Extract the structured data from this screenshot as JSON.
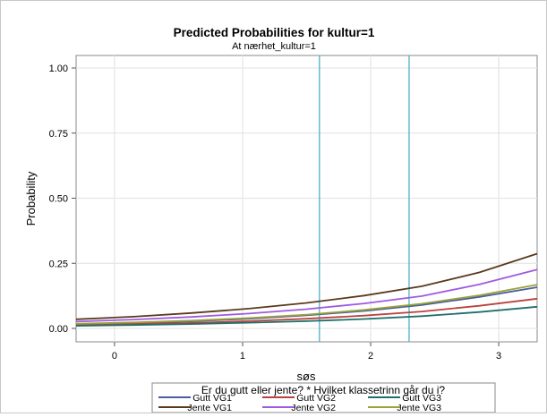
{
  "chart_data": {
    "type": "line",
    "title": "Predicted Probabilities for kultur=1",
    "subtitle": "At nærhet_kultur=1",
    "xlabel": "søs",
    "ylabel": "Probability",
    "xlim": [
      -0.3,
      3.3
    ],
    "ylim": [
      0,
      1
    ],
    "xticks": [
      0,
      1,
      2,
      3
    ],
    "yticks": [
      "0.00",
      "0.25",
      "0.50",
      "0.75",
      "1.00"
    ],
    "grid": true,
    "reference_lines_x": [
      1.6,
      2.3
    ],
    "reference_line_color": "#4bb3c6",
    "legend": {
      "title": "Er du gutt eller jente? * Hvilket klassetrinn går du i?",
      "position": "bottom"
    },
    "x": [
      -0.3,
      0.15,
      0.6,
      1.05,
      1.5,
      1.95,
      2.4,
      2.85,
      3.3
    ],
    "series": [
      {
        "name": "Gutt VG1",
        "color": "#4a5f9c",
        "values": [
          0.015,
          0.02,
          0.027,
          0.037,
          0.05,
          0.067,
          0.09,
          0.121,
          0.158
        ]
      },
      {
        "name": "Gutt VG2",
        "color": "#b8433e",
        "values": [
          0.012,
          0.016,
          0.021,
          0.028,
          0.037,
          0.049,
          0.065,
          0.087,
          0.114
        ]
      },
      {
        "name": "Gutt VG3",
        "color": "#1f6f6b",
        "values": [
          0.01,
          0.013,
          0.017,
          0.022,
          0.028,
          0.036,
          0.047,
          0.063,
          0.083
        ]
      },
      {
        "name": "Jente VG1",
        "color": "#5a3a1e",
        "values": [
          0.035,
          0.045,
          0.059,
          0.076,
          0.098,
          0.126,
          0.162,
          0.215,
          0.287
        ]
      },
      {
        "name": "Jente VG2",
        "color": "#a05ae0",
        "values": [
          0.026,
          0.034,
          0.044,
          0.057,
          0.074,
          0.096,
          0.124,
          0.169,
          0.226
        ]
      },
      {
        "name": "Jente VG3",
        "color": "#9aa23a",
        "values": [
          0.018,
          0.023,
          0.03,
          0.04,
          0.053,
          0.071,
          0.095,
          0.127,
          0.168
        ]
      }
    ]
  }
}
